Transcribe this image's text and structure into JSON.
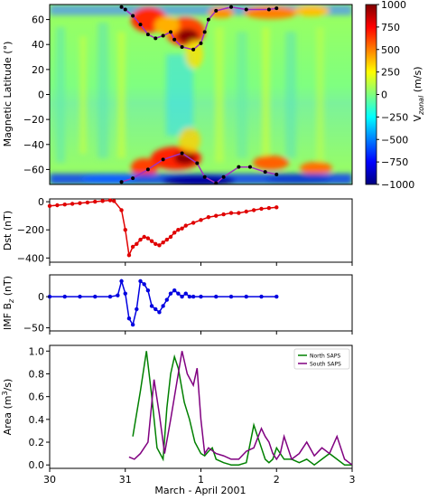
{
  "chart_data": [
    {
      "type": "heatmap",
      "ylabel": "Magnetic Latitude (°)",
      "ylim": [
        -72,
        72
      ],
      "yticks": [
        -60,
        -40,
        -20,
        0,
        20,
        40,
        60
      ],
      "colorbar": {
        "label_main": "V",
        "label_sub": "zonal",
        "label_unit": " (m/s)",
        "ticks": [
          -1000,
          -750,
          -500,
          -250,
          0,
          250,
          500,
          750,
          1000
        ],
        "colors": [
          "#00007f",
          "#0000ff",
          "#007fff",
          "#00ffff",
          "#7fff7f",
          "#ffff00",
          "#ff7f00",
          "#ff0000",
          "#7f0000"
        ]
      },
      "north_saps_boundary": [
        [
          30.95,
          70
        ],
        [
          31.0,
          68
        ],
        [
          31.1,
          63
        ],
        [
          31.2,
          56
        ],
        [
          31.3,
          48
        ],
        [
          31.4,
          45
        ],
        [
          31.5,
          47
        ],
        [
          31.6,
          50
        ],
        [
          31.65,
          44
        ],
        [
          31.75,
          38
        ],
        [
          31.9,
          36
        ],
        [
          32.0,
          41
        ],
        [
          32.05,
          50
        ],
        [
          32.1,
          60
        ],
        [
          32.2,
          67
        ],
        [
          32.4,
          70
        ],
        [
          32.6,
          68
        ],
        [
          32.9,
          68
        ],
        [
          33.0,
          69
        ]
      ],
      "south_saps_boundary": [
        [
          30.95,
          -70
        ],
        [
          31.1,
          -67
        ],
        [
          31.3,
          -60
        ],
        [
          31.5,
          -52
        ],
        [
          31.75,
          -47
        ],
        [
          31.95,
          -55
        ],
        [
          32.05,
          -66
        ],
        [
          32.2,
          -71
        ],
        [
          32.3,
          -66
        ],
        [
          32.5,
          -58
        ],
        [
          32.65,
          -58
        ],
        [
          32.85,
          -62
        ],
        [
          33.0,
          -64
        ]
      ]
    },
    {
      "type": "line",
      "ylabel": "Dst (nT)",
      "ylim": [
        -430,
        20
      ],
      "yticks": [
        -400,
        -200,
        0
      ],
      "series": [
        {
          "values_x": [
            30.0,
            30.1,
            30.2,
            30.3,
            30.4,
            30.5,
            30.6,
            30.7,
            30.8,
            30.85,
            30.95,
            31.0,
            31.05,
            31.1,
            31.15,
            31.2,
            31.25,
            31.3,
            31.35,
            31.4,
            31.45,
            31.5,
            31.55,
            31.6,
            31.65,
            31.7,
            31.75,
            31.8,
            31.9,
            32.0,
            32.1,
            32.2,
            32.3,
            32.4,
            32.5,
            32.6,
            32.7,
            32.8,
            32.9,
            33.0
          ],
          "values_y": [
            -30,
            -25,
            -20,
            -15,
            -10,
            -5,
            0,
            5,
            10,
            5,
            -60,
            -200,
            -380,
            -320,
            -300,
            -270,
            -250,
            -260,
            -280,
            -300,
            -310,
            -290,
            -270,
            -250,
            -220,
            -200,
            -190,
            -170,
            -150,
            -130,
            -110,
            -100,
            -90,
            -80,
            -80,
            -70,
            -60,
            -50,
            -45,
            -40
          ]
        }
      ]
    },
    {
      "type": "line",
      "ylabel_main": "IMF B",
      "ylabel_sub": "z",
      "ylabel_unit": " (nT)",
      "ylim": [
        -55,
        35
      ],
      "yticks": [
        -50,
        0
      ],
      "series": [
        {
          "values_x": [
            30.0,
            30.2,
            30.4,
            30.6,
            30.8,
            30.9,
            30.95,
            31.0,
            31.05,
            31.1,
            31.15,
            31.2,
            31.25,
            31.3,
            31.35,
            31.4,
            31.45,
            31.5,
            31.55,
            31.6,
            31.65,
            31.7,
            31.75,
            31.8,
            31.85,
            31.9,
            32.0,
            32.2,
            32.4,
            32.6,
            32.8,
            33.0
          ],
          "values_y": [
            0,
            0,
            0,
            0,
            0,
            2,
            25,
            5,
            -35,
            -45,
            -20,
            25,
            20,
            10,
            -15,
            -20,
            -25,
            -15,
            -5,
            5,
            10,
            5,
            0,
            5,
            0,
            0,
            0,
            0,
            0,
            0,
            0,
            0
          ]
        }
      ]
    },
    {
      "type": "line",
      "ylabel_main": "Area (m",
      "ylabel_sup": "3",
      "ylabel_unit": "/s)",
      "xlabel": "March - April 2001",
      "ylim": [
        -0.03,
        1.05
      ],
      "yticks": [
        0.0,
        0.2,
        0.4,
        0.6,
        0.8,
        1.0
      ],
      "xticks": [
        {
          "value": 30,
          "label": "30"
        },
        {
          "value": 31,
          "label": "31"
        },
        {
          "value": 32,
          "label": "1"
        },
        {
          "value": 33,
          "label": "2"
        },
        {
          "value": 34,
          "label": "3"
        }
      ],
      "legend_position": "top-right",
      "series": [
        {
          "name": "North SAPS",
          "color": "#008000",
          "values_x": [
            31.1,
            31.2,
            31.28,
            31.35,
            31.42,
            31.5,
            31.55,
            31.6,
            31.65,
            31.7,
            31.78,
            31.85,
            31.92,
            32.0,
            32.05,
            32.1,
            32.15,
            32.2,
            32.3,
            32.4,
            32.5,
            32.6,
            32.7,
            32.8,
            32.85,
            32.9,
            32.95,
            33.0,
            33.05,
            33.1,
            33.2,
            33.3,
            33.4,
            33.5,
            33.6,
            33.7,
            33.8,
            33.9,
            34.0
          ],
          "values_y": [
            0.25,
            0.65,
            1.0,
            0.6,
            0.15,
            0.05,
            0.5,
            0.8,
            0.95,
            0.85,
            0.55,
            0.4,
            0.2,
            0.1,
            0.08,
            0.12,
            0.15,
            0.05,
            0.02,
            0.0,
            0.0,
            0.02,
            0.35,
            0.15,
            0.05,
            0.02,
            0.05,
            0.15,
            0.1,
            0.05,
            0.05,
            0.02,
            0.05,
            0.0,
            0.05,
            0.1,
            0.05,
            0.0,
            0.0
          ]
        },
        {
          "name": "South SAPS",
          "color": "#800080",
          "values_x": [
            31.05,
            31.12,
            31.2,
            31.3,
            31.38,
            31.45,
            31.52,
            31.6,
            31.65,
            31.7,
            31.75,
            31.82,
            31.9,
            31.95,
            32.0,
            32.05,
            32.1,
            32.2,
            32.3,
            32.4,
            32.5,
            32.6,
            32.7,
            32.8,
            32.85,
            32.9,
            32.95,
            33.0,
            33.05,
            33.1,
            33.2,
            33.3,
            33.4,
            33.5,
            33.6,
            33.7,
            33.8,
            33.9,
            34.0
          ],
          "values_y": [
            0.07,
            0.05,
            0.1,
            0.2,
            0.75,
            0.45,
            0.1,
            0.4,
            0.6,
            0.8,
            1.0,
            0.8,
            0.7,
            0.85,
            0.4,
            0.1,
            0.15,
            0.1,
            0.08,
            0.05,
            0.05,
            0.12,
            0.15,
            0.32,
            0.25,
            0.2,
            0.1,
            0.05,
            0.1,
            0.25,
            0.05,
            0.1,
            0.2,
            0.08,
            0.15,
            0.1,
            0.25,
            0.05,
            0.0
          ]
        }
      ]
    }
  ]
}
